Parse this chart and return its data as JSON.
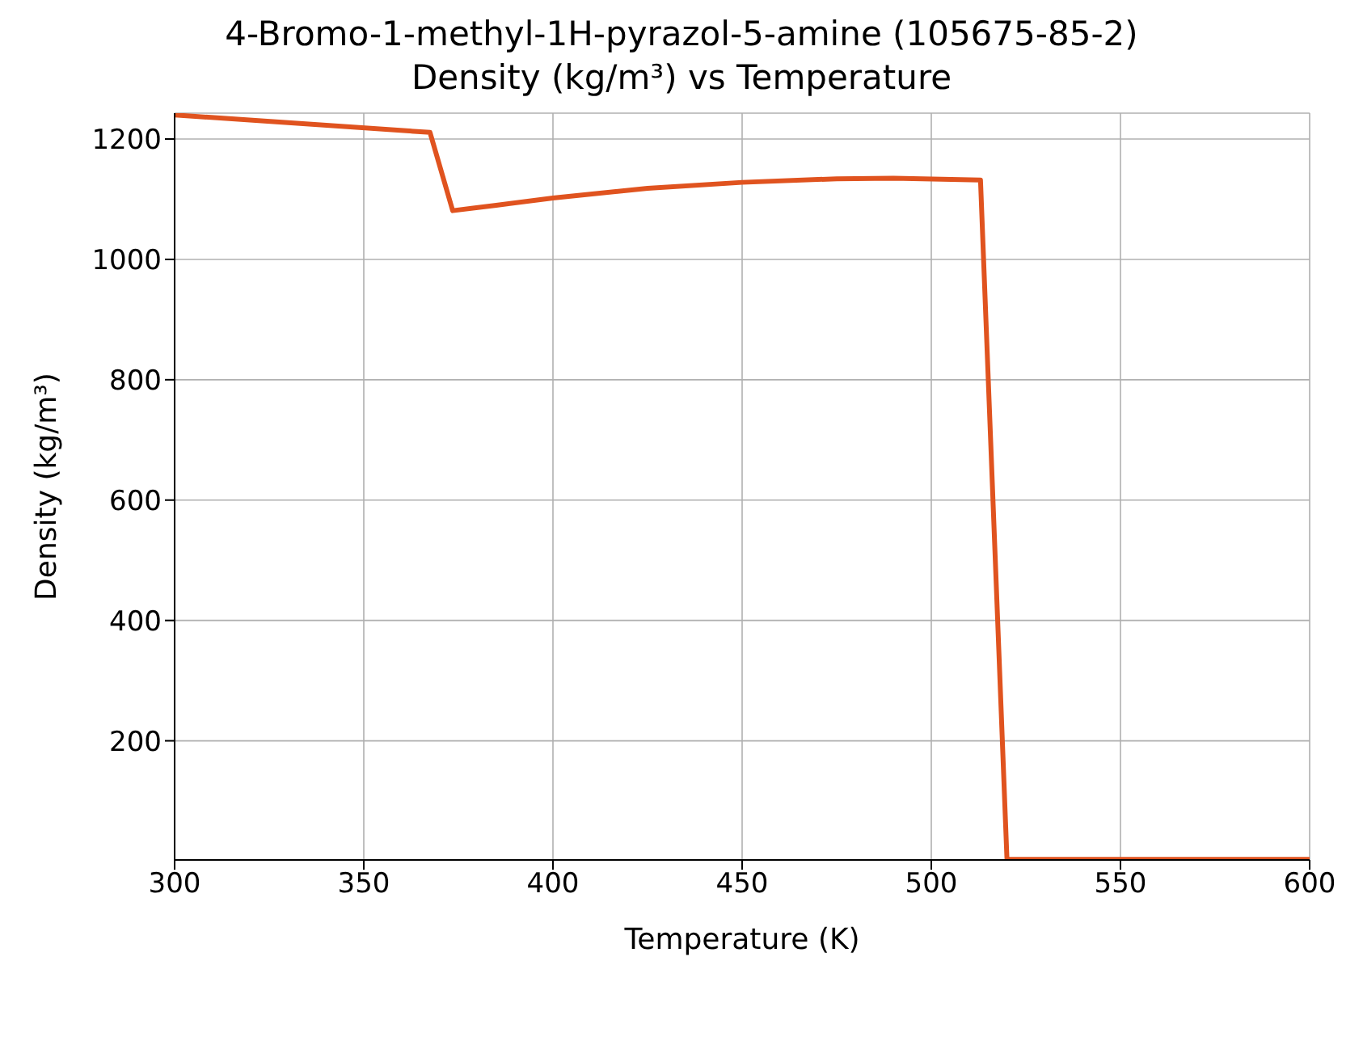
{
  "chart_data": {
    "type": "line",
    "title": "4-Bromo-1-methyl-1H-pyrazol-5-amine (105675-85-2)",
    "subtitle": "Density (kg/m³) vs Temperature",
    "xlabel": "Temperature (K)",
    "ylabel": "Density (kg/m³)",
    "series": [
      {
        "color": "#e0531f",
        "x": [
          300,
          367.5,
          373.5,
          385,
          400,
          425,
          450,
          475,
          490,
          513,
          520,
          600
        ],
        "values": [
          1240,
          1211,
          1081,
          1090,
          1102,
          1118,
          1128,
          1134,
          1135,
          1132,
          3,
          3
        ]
      }
    ],
    "xlim": [
      300,
      600
    ],
    "xticks": [
      300,
      350,
      400,
      450,
      500,
      550,
      600
    ],
    "ylim": [
      2,
      1243
    ],
    "yticks": [
      200,
      400,
      600,
      800,
      1000,
      1200
    ],
    "grid": true,
    "marker": "none",
    "line_style": "solid"
  }
}
